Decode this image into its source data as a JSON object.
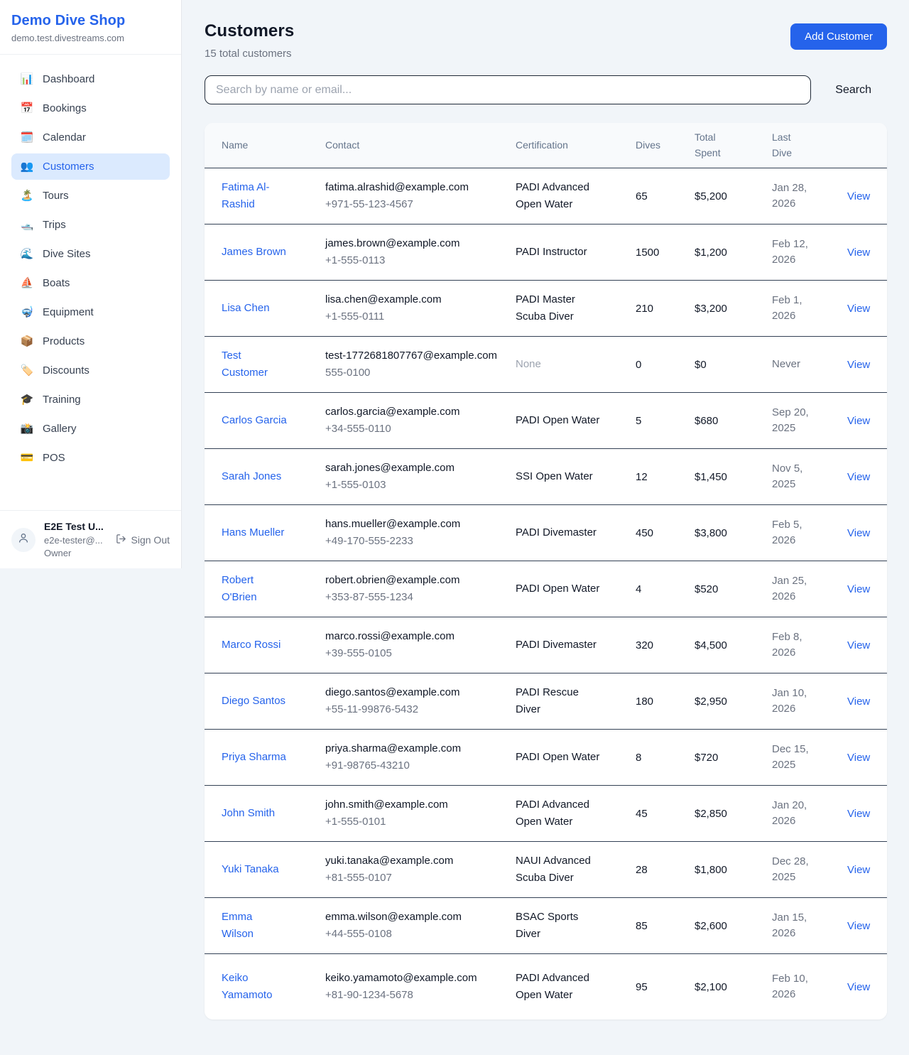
{
  "sidebar": {
    "title": "Demo Dive Shop",
    "subtitle": "demo.test.divestreams.com",
    "items": [
      {
        "label": "Dashboard",
        "icon_glyph": "📊",
        "icon_name": "bar-chart-icon",
        "active": false
      },
      {
        "label": "Bookings",
        "icon_glyph": "📅",
        "icon_name": "calendar-icon",
        "active": false
      },
      {
        "label": "Calendar",
        "icon_glyph": "🗓️",
        "icon_name": "spiral-calendar-icon",
        "active": false
      },
      {
        "label": "Customers",
        "icon_glyph": "👥",
        "icon_name": "people-icon",
        "active": true
      },
      {
        "label": "Tours",
        "icon_glyph": "🏝️",
        "icon_name": "island-icon",
        "active": false
      },
      {
        "label": "Trips",
        "icon_glyph": "🛥️",
        "icon_name": "motorboat-icon",
        "active": false
      },
      {
        "label": "Dive Sites",
        "icon_glyph": "🌊",
        "icon_name": "wave-icon",
        "active": false
      },
      {
        "label": "Boats",
        "icon_glyph": "⛵",
        "icon_name": "sailboat-icon",
        "active": false
      },
      {
        "label": "Equipment",
        "icon_glyph": "🤿",
        "icon_name": "diving-mask-icon",
        "active": false
      },
      {
        "label": "Products",
        "icon_glyph": "📦",
        "icon_name": "package-icon",
        "active": false
      },
      {
        "label": "Discounts",
        "icon_glyph": "🏷️",
        "icon_name": "tag-icon",
        "active": false
      },
      {
        "label": "Training",
        "icon_glyph": "🎓",
        "icon_name": "graduation-cap-icon",
        "active": false
      },
      {
        "label": "Gallery",
        "icon_glyph": "📸",
        "icon_name": "camera-flash-icon",
        "active": false
      },
      {
        "label": "POS",
        "icon_glyph": "💳",
        "icon_name": "credit-card-icon",
        "active": false
      }
    ],
    "user": {
      "name": "E2E Test U...",
      "email": "e2e-tester@...",
      "role": "Owner",
      "sign_out_label": "Sign Out"
    }
  },
  "header": {
    "title": "Customers",
    "subtitle": "15 total customers",
    "add_button_label": "Add Customer"
  },
  "search": {
    "placeholder": "Search by name or email...",
    "button_label": "Search"
  },
  "table": {
    "columns": [
      "Name",
      "Contact",
      "Certification",
      "Dives",
      "Total Spent",
      "Last Dive"
    ],
    "rows": [
      {
        "name": "Fatima Al-Rashid",
        "email": "fatima.alrashid@example.com",
        "phone": "+971-55-123-4567",
        "certification": "PADI Advanced Open Water",
        "dives": "65",
        "total_spent": "$5,200",
        "last_dive": "Jan 28, 2026",
        "action": "View"
      },
      {
        "name": "James Brown",
        "email": "james.brown@example.com",
        "phone": "+1-555-0113",
        "certification": "PADI Instructor",
        "dives": "1500",
        "total_spent": "$1,200",
        "last_dive": "Feb 12, 2026",
        "action": "View"
      },
      {
        "name": "Lisa Chen",
        "email": "lisa.chen@example.com",
        "phone": "+1-555-0111",
        "certification": "PADI Master Scuba Diver",
        "dives": "210",
        "total_spent": "$3,200",
        "last_dive": "Feb 1, 2026",
        "action": "View"
      },
      {
        "name": "Test Customer",
        "email": "test-1772681807767@example.com",
        "phone": "555-0100",
        "certification": "None",
        "dives": "0",
        "total_spent": "$0",
        "last_dive": "Never",
        "action": "View"
      },
      {
        "name": "Carlos Garcia",
        "email": "carlos.garcia@example.com",
        "phone": "+34-555-0110",
        "certification": "PADI Open Water",
        "dives": "5",
        "total_spent": "$680",
        "last_dive": "Sep 20, 2025",
        "action": "View"
      },
      {
        "name": "Sarah Jones",
        "email": "sarah.jones@example.com",
        "phone": "+1-555-0103",
        "certification": "SSI Open Water",
        "dives": "12",
        "total_spent": "$1,450",
        "last_dive": "Nov 5, 2025",
        "action": "View"
      },
      {
        "name": "Hans Mueller",
        "email": "hans.mueller@example.com",
        "phone": "+49-170-555-2233",
        "certification": "PADI Divemaster",
        "dives": "450",
        "total_spent": "$3,800",
        "last_dive": "Feb 5, 2026",
        "action": "View"
      },
      {
        "name": "Robert O'Brien",
        "email": "robert.obrien@example.com",
        "phone": "+353-87-555-1234",
        "certification": "PADI Open Water",
        "dives": "4",
        "total_spent": "$520",
        "last_dive": "Jan 25, 2026",
        "action": "View"
      },
      {
        "name": "Marco Rossi",
        "email": "marco.rossi@example.com",
        "phone": "+39-555-0105",
        "certification": "PADI Divemaster",
        "dives": "320",
        "total_spent": "$4,500",
        "last_dive": "Feb 8, 2026",
        "action": "View"
      },
      {
        "name": "Diego Santos",
        "email": "diego.santos@example.com",
        "phone": "+55-11-99876-5432",
        "certification": "PADI Rescue Diver",
        "dives": "180",
        "total_spent": "$2,950",
        "last_dive": "Jan 10, 2026",
        "action": "View"
      },
      {
        "name": "Priya Sharma",
        "email": "priya.sharma@example.com",
        "phone": "+91-98765-43210",
        "certification": "PADI Open Water",
        "dives": "8",
        "total_spent": "$720",
        "last_dive": "Dec 15, 2025",
        "action": "View"
      },
      {
        "name": "John Smith",
        "email": "john.smith@example.com",
        "phone": "+1-555-0101",
        "certification": "PADI Advanced Open Water",
        "dives": "45",
        "total_spent": "$2,850",
        "last_dive": "Jan 20, 2026",
        "action": "View"
      },
      {
        "name": "Yuki Tanaka",
        "email": "yuki.tanaka@example.com",
        "phone": "+81-555-0107",
        "certification": "NAUI Advanced Scuba Diver",
        "dives": "28",
        "total_spent": "$1,800",
        "last_dive": "Dec 28, 2025",
        "action": "View"
      },
      {
        "name": "Emma Wilson",
        "email": "emma.wilson@example.com",
        "phone": "+44-555-0108",
        "certification": "BSAC Sports Diver",
        "dives": "85",
        "total_spent": "$2,600",
        "last_dive": "Jan 15, 2026",
        "action": "View"
      },
      {
        "name": "Keiko Yamamoto",
        "email": "keiko.yamamoto@example.com",
        "phone": "+81-90-1234-5678",
        "certification": "PADI Advanced Open Water",
        "dives": "95",
        "total_spent": "$2,100",
        "last_dive": "Feb 10, 2026",
        "action": "View"
      }
    ]
  },
  "colors": {
    "accent_blue": "#2563eb",
    "active_item_bg": "#dbeafe",
    "page_bg": "#f1f5f9",
    "table_header_bg": "#f8fafc",
    "row_border": "#334155",
    "muted_text": "#6b7280",
    "none_text": "#9ca3af"
  }
}
